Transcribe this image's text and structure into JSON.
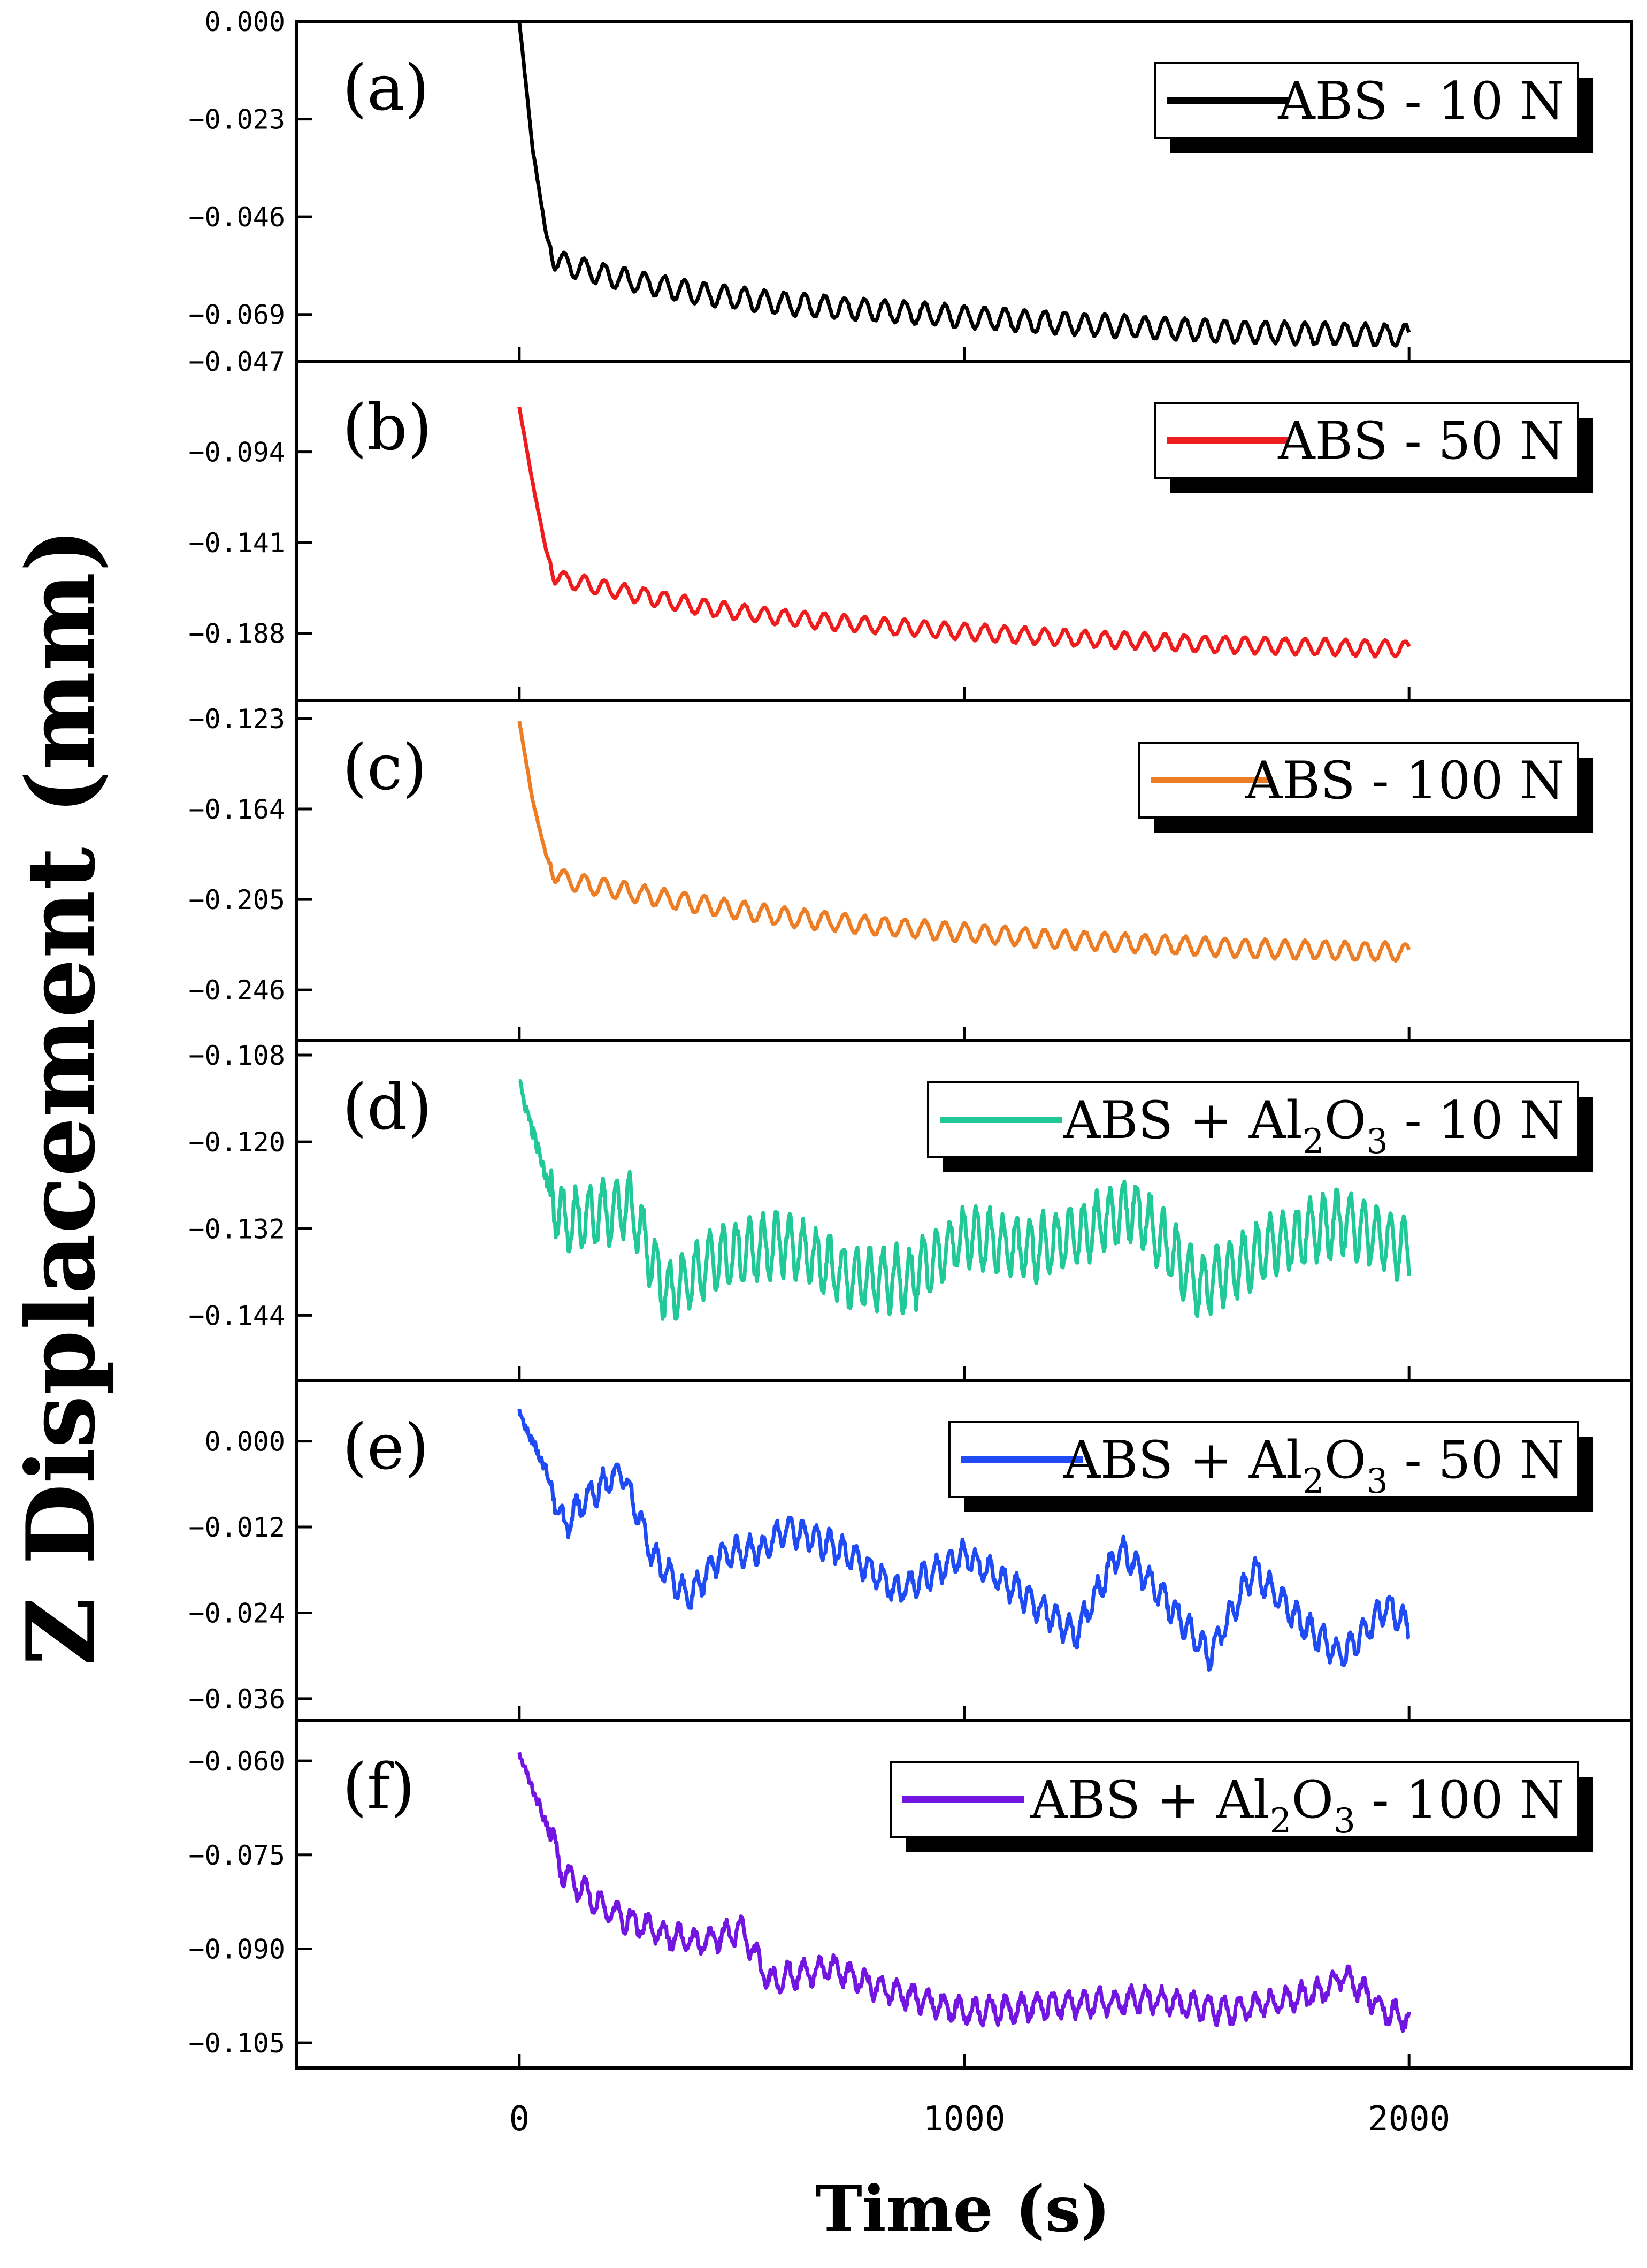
{
  "chart_data": {
    "type": "line",
    "ylabel": "Z Displacement (mm)",
    "xlabel": "Time (s)",
    "xlim": [
      -500,
      2500
    ],
    "xticks": [
      0,
      1000,
      2000
    ],
    "x_tick_labels": [
      "0",
      "1000",
      "2000"
    ],
    "panels": [
      {
        "label": "(a)",
        "legend": "ABS - 10 N",
        "color": "#000000",
        "ylim": [
          -0.08,
          0.0
        ],
        "yticks": [
          0.0,
          -0.023,
          -0.046,
          -0.069
        ],
        "ytick_labels": [
          "0.000",
          "−0.023",
          "−0.046",
          "−0.069"
        ],
        "series": {
          "x": [
            0,
            30,
            60,
            80,
            100,
            200,
            400,
            600,
            800,
            1000,
            1200,
            1400,
            1600,
            1800,
            2000
          ],
          "y": [
            0.0,
            -0.03,
            -0.05,
            -0.056,
            -0.057,
            -0.06,
            -0.064,
            -0.0665,
            -0.068,
            -0.0695,
            -0.071,
            -0.072,
            -0.073,
            -0.0735,
            -0.074
          ],
          "osc_amp": 0.0025,
          "osc_period": 45,
          "noise": 0.0003
        }
      },
      {
        "label": "(b)",
        "legend": "ABS - 50 N",
        "color": "#ee1c1c",
        "ylim": [
          -0.223,
          -0.047
        ],
        "yticks": [
          -0.047,
          -0.094,
          -0.141,
          -0.188
        ],
        "ytick_labels": [
          "−0.047",
          "−0.094",
          "−0.141",
          "−0.188"
        ],
        "series": {
          "x": [
            0,
            30,
            60,
            80,
            100,
            200,
            400,
            600,
            800,
            1000,
            1200,
            1400,
            1600,
            1800,
            2000
          ],
          "y": [
            -0.071,
            -0.11,
            -0.145,
            -0.158,
            -0.16,
            -0.165,
            -0.174,
            -0.18,
            -0.184,
            -0.187,
            -0.19,
            -0.192,
            -0.194,
            -0.195,
            -0.196
          ],
          "osc_amp": 0.004,
          "osc_period": 45,
          "noise": 0.0005
        }
      },
      {
        "label": "(c)",
        "legend": "ABS - 100 N",
        "color": "#ed7d25",
        "ylim": [
          -0.269,
          -0.115
        ],
        "yticks": [
          -0.123,
          -0.164,
          -0.205,
          -0.246
        ],
        "ytick_labels": [
          "−0.123",
          "−0.164",
          "−0.205",
          "−0.246"
        ],
        "series": {
          "x": [
            0,
            30,
            60,
            80,
            100,
            200,
            400,
            600,
            800,
            1000,
            1200,
            1400,
            1600,
            1800,
            2000
          ],
          "y": [
            -0.124,
            -0.16,
            -0.185,
            -0.193,
            -0.196,
            -0.2,
            -0.207,
            -0.213,
            -0.217,
            -0.22,
            -0.223,
            -0.225,
            -0.227,
            -0.228,
            -0.229
          ],
          "osc_amp": 0.004,
          "osc_period": 45,
          "noise": 0.0005
        }
      },
      {
        "label": "(d)",
        "legend": "ABS + Al₂O₃ - 10 N",
        "legend_parts": {
          "prefix": "ABS + Al",
          "sub1": "2",
          "mid": "O",
          "sub2": "3",
          "suffix": " - 10 N"
        },
        "color": "#20c997",
        "ylim": [
          -0.153,
          -0.106
        ],
        "yticks": [
          -0.108,
          -0.12,
          -0.132,
          -0.144
        ],
        "ytick_labels": [
          "−0.108",
          "−0.120",
          "−0.132",
          "−0.144"
        ],
        "series": {
          "x": [
            0,
            60,
            100,
            250,
            330,
            450,
            600,
            750,
            880,
            1000,
            1150,
            1250,
            1380,
            1530,
            1700,
            1850,
            2000
          ],
          "y": [
            -0.112,
            -0.125,
            -0.131,
            -0.129,
            -0.141,
            -0.136,
            -0.134,
            -0.139,
            -0.139,
            -0.133,
            -0.135,
            -0.133,
            -0.129,
            -0.14,
            -0.134,
            -0.131,
            -0.135
          ],
          "osc_amp": 0.004,
          "osc_period": 30,
          "noise": 0.001
        }
      },
      {
        "label": "(e)",
        "legend": "ABS + Al₂O₃ - 50 N",
        "legend_parts": {
          "prefix": "ABS + Al",
          "sub1": "2",
          "mid": "O",
          "sub2": "3",
          "suffix": " - 50 N"
        },
        "color": "#1f4bf5",
        "ylim": [
          -0.039,
          0.0085
        ],
        "yticks": [
          0.0,
          -0.012,
          -0.024,
          -0.036
        ],
        "ytick_labels": [
          "0.000",
          "−0.012",
          "−0.024",
          "−0.036"
        ],
        "series": {
          "x": [
            0,
            60,
            100,
            150,
            230,
            300,
            380,
            450,
            550,
            600,
            750,
            850,
            1000,
            1100,
            1250,
            1350,
            1450,
            1550,
            1650,
            1750,
            1850,
            1950,
            2000
          ],
          "y": [
            0.004,
            -0.004,
            -0.012,
            -0.008,
            -0.004,
            -0.016,
            -0.022,
            -0.016,
            -0.015,
            -0.012,
            -0.016,
            -0.021,
            -0.016,
            -0.02,
            -0.027,
            -0.015,
            -0.022,
            -0.03,
            -0.018,
            -0.025,
            -0.03,
            -0.023,
            -0.026
          ],
          "osc_amp": 0.0018,
          "osc_period": 30,
          "noise": 0.0007
        }
      },
      {
        "label": "(f)",
        "legend": "ABS + Al₂O₃ - 100 N",
        "legend_parts": {
          "prefix": "ABS + Al",
          "sub1": "2",
          "mid": "O",
          "sub2": "3",
          "suffix": " - 100 N"
        },
        "color": "#7315e0",
        "ylim": [
          -0.109,
          -0.0535
        ],
        "yticks": [
          -0.06,
          -0.075,
          -0.09,
          -0.105
        ],
        "ytick_labels": [
          "−0.060",
          "−0.075",
          "−0.090",
          "−0.105"
        ],
        "series": {
          "x": [
            0,
            50,
            100,
            200,
            300,
            400,
            500,
            560,
            700,
            800,
            900,
            1000,
            1200,
            1400,
            1600,
            1800,
            1850,
            1950,
            2000
          ],
          "y": [
            -0.059,
            -0.068,
            -0.078,
            -0.084,
            -0.087,
            -0.089,
            -0.087,
            -0.095,
            -0.093,
            -0.096,
            -0.098,
            -0.1,
            -0.099,
            -0.098,
            -0.1,
            -0.097,
            -0.094,
            -0.1,
            -0.101
          ],
          "osc_amp": 0.0018,
          "osc_period": 35,
          "noise": 0.0008
        }
      }
    ]
  }
}
